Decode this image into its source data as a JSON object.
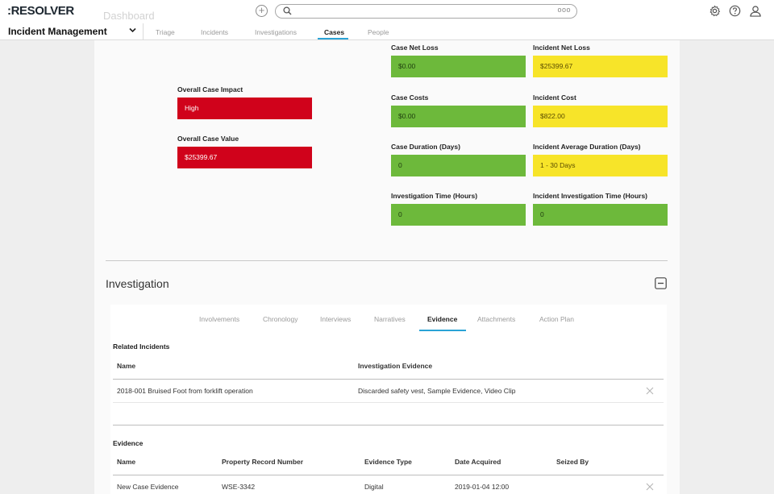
{
  "header": {
    "logo": ":RESOLVER",
    "search_more": "ooo",
    "app_name": "Incident Management",
    "tabs": [
      {
        "label": "Triage"
      },
      {
        "label": "Incidents"
      },
      {
        "label": "Investigations"
      },
      {
        "label": "Cases"
      },
      {
        "label": "People"
      }
    ],
    "active_tab": "Cases"
  },
  "dashboard_title": "Dashboard",
  "metrics": {
    "overall_case_impact": {
      "label": "Overall Case Impact",
      "value": "High",
      "status": "red"
    },
    "overall_case_value": {
      "label": "Overall Case Value",
      "value": "$25399.67",
      "status": "red"
    },
    "case_net_loss": {
      "label": "Case Net Loss",
      "value": "$0.00",
      "status": "green"
    },
    "incident_net_loss": {
      "label": "Incident Net Loss",
      "value": "$25399.67",
      "status": "yellow"
    },
    "case_costs": {
      "label": "Case Costs",
      "value": "$0.00",
      "status": "green"
    },
    "incident_cost": {
      "label": "Incident Cost",
      "value": "$822.00",
      "status": "yellow"
    },
    "case_duration": {
      "label": "Case Duration (Days)",
      "value": "0",
      "status": "green"
    },
    "incident_avg_duration": {
      "label": "Incident Average Duration (Days)",
      "value": "1 - 30 Days",
      "status": "yellow"
    },
    "investigation_time": {
      "label": "Investigation Time (Hours)",
      "value": "0",
      "status": "green"
    },
    "incident_investigation_time": {
      "label": "Incident Investigation Time (Hours)",
      "value": "0",
      "status": "green"
    }
  },
  "investigation": {
    "title": "Investigation",
    "tabs": [
      {
        "label": "Involvements"
      },
      {
        "label": "Chronology"
      },
      {
        "label": "Interviews"
      },
      {
        "label": "Narratives"
      },
      {
        "label": "Evidence"
      },
      {
        "label": "Attachments"
      },
      {
        "label": "Action Plan"
      }
    ],
    "active_tab": "Evidence",
    "related_incidents": {
      "title": "Related Incidents",
      "columns": [
        "Name",
        "Investigation Evidence"
      ],
      "rows": [
        {
          "name": "2018-001 Bruised Foot from forklift operation",
          "evidence": "Discarded safety vest, Sample Evidence, Video Clip"
        }
      ]
    },
    "evidence": {
      "title": "Evidence",
      "columns": [
        "Name",
        "Property Record Number",
        "Evidence Type",
        "Date Acquired",
        "Seized By"
      ],
      "rows": [
        {
          "name": "New Case Evidence",
          "record": "WSE-3342",
          "type": "Digital",
          "date": "2019-01-04 12:00",
          "seized_by": ""
        }
      ]
    }
  },
  "colors": {
    "accent": "#2aa3d6",
    "green": "#6db93b",
    "yellow": "#f7e429",
    "red": "#d0021b"
  }
}
